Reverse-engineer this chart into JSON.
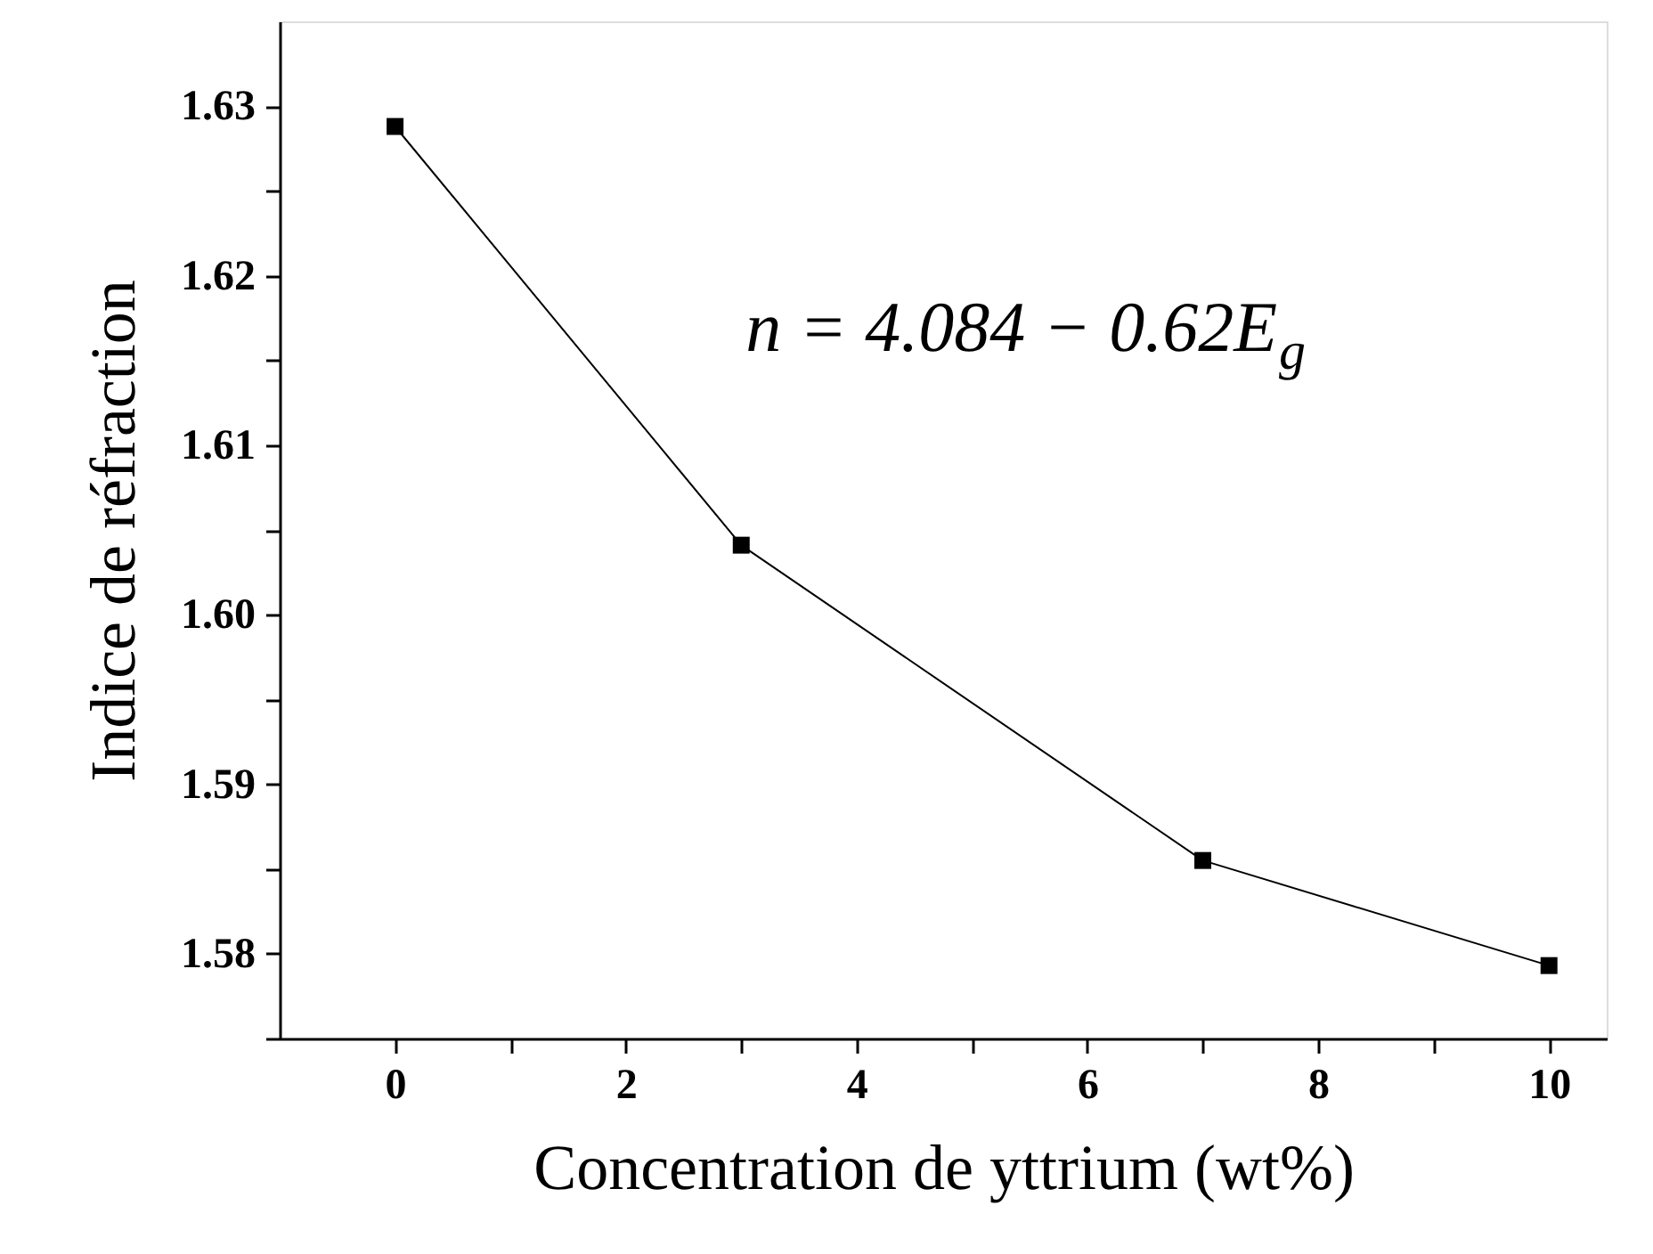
{
  "chart_data": {
    "type": "line",
    "xlabel": "Concentration de yttrium (wt%)",
    "ylabel": "Indice de réfraction",
    "x": [
      0,
      3,
      7,
      10
    ],
    "series": [
      {
        "color": "#000000",
        "values": [
          1.6288,
          1.6041,
          1.5855,
          1.5793
        ]
      }
    ],
    "xlim": [
      -1,
      10.5
    ],
    "xticks": [
      0,
      {
        "value": 1,
        "label": null
      },
      2,
      {
        "value": 3,
        "label": null
      },
      4,
      {
        "value": 5,
        "label": null
      },
      6,
      {
        "value": 7,
        "label": null
      },
      8,
      {
        "value": 9,
        "label": null
      },
      10
    ],
    "ylim": [
      1.575,
      1.635
    ],
    "yticks": [
      {
        "value": 1.575,
        "label": null
      },
      1.58,
      {
        "value": 1.585,
        "label": null
      },
      1.59,
      {
        "value": 1.595,
        "label": null
      },
      {
        "value": 1.6,
        "label": "1.60"
      },
      {
        "value": 1.605,
        "label": null
      },
      1.61,
      {
        "value": 1.615,
        "label": null
      },
      1.62,
      {
        "value": 1.625,
        "label": null
      },
      1.63
    ],
    "marker": "square",
    "line_style": "solid",
    "grid": false,
    "legend": false,
    "annotations": [
      "n = 4.084 − 0.62E$_{g}$"
    ]
  }
}
